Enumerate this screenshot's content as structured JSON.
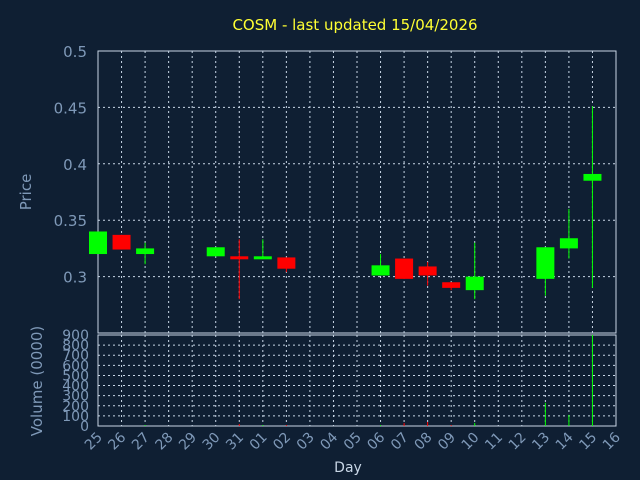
{
  "chart_data": {
    "type": "candlestick",
    "title": "COSM - last updated 15/04/2026",
    "xlabel": "Day",
    "price_ylabel": "Price",
    "volume_ylabel": "Volume (0000)",
    "price_ylim": [
      0.25,
      0.5
    ],
    "price_ticks": [
      "0.5",
      "0.45",
      "0.4",
      "0.35",
      "0.3"
    ],
    "price_tick_values": [
      0.5,
      0.45,
      0.4,
      0.35,
      0.3
    ],
    "volume_ylim": [
      0,
      900
    ],
    "volume_ticks": [
      "900",
      "800",
      "700",
      "600",
      "500",
      "400",
      "300",
      "200",
      "100",
      "0"
    ],
    "volume_tick_values": [
      900,
      800,
      700,
      600,
      500,
      400,
      300,
      200,
      100,
      0
    ],
    "x_tick_labels": [
      "25",
      "26",
      "27",
      "28",
      "29",
      "30",
      "31",
      "01",
      "02",
      "03",
      "04",
      "05",
      "06",
      "07",
      "08",
      "09",
      "10",
      "11",
      "12",
      "13",
      "14",
      "15",
      "16"
    ],
    "grid": true,
    "up_color": "#00ff00",
    "down_color": "#ff0000",
    "candles": [
      {
        "day": "25",
        "open": 0.32,
        "close": 0.34,
        "high": 0.34,
        "low": 0.32,
        "volume": 0
      },
      {
        "day": "26",
        "open": 0.337,
        "close": 0.324,
        "high": 0.337,
        "low": 0.324,
        "volume": 0
      },
      {
        "day": "27",
        "open": 0.32,
        "close": 0.325,
        "high": 0.33,
        "low": 0.311,
        "volume": 10
      },
      {
        "day": "30",
        "open": 0.318,
        "close": 0.326,
        "high": 0.326,
        "low": 0.318,
        "volume": 0
      },
      {
        "day": "31",
        "open": 0.318,
        "close": 0.316,
        "high": 0.333,
        "low": 0.28,
        "volume": 20
      },
      {
        "day": "01",
        "open": 0.317,
        "close": 0.318,
        "high": 0.333,
        "low": 0.316,
        "volume": 10
      },
      {
        "day": "02",
        "open": 0.317,
        "close": 0.307,
        "high": 0.317,
        "low": 0.304,
        "volume": 10
      },
      {
        "day": "06",
        "open": 0.301,
        "close": 0.31,
        "high": 0.32,
        "low": 0.301,
        "volume": 10
      },
      {
        "day": "07",
        "open": 0.316,
        "close": 0.298,
        "high": 0.316,
        "low": 0.298,
        "volume": 30
      },
      {
        "day": "08",
        "open": 0.309,
        "close": 0.301,
        "high": 0.313,
        "low": 0.292,
        "volume": 40
      },
      {
        "day": "09",
        "open": 0.295,
        "close": 0.29,
        "high": 0.295,
        "low": 0.288,
        "volume": 10
      },
      {
        "day": "10",
        "open": 0.288,
        "close": 0.3,
        "high": 0.33,
        "low": 0.28,
        "volume": 30
      },
      {
        "day": "13",
        "open": 0.298,
        "close": 0.326,
        "high": 0.326,
        "low": 0.283,
        "volume": 230
      },
      {
        "day": "14",
        "open": 0.325,
        "close": 0.334,
        "high": 0.36,
        "low": 0.316,
        "volume": 110
      },
      {
        "day": "15",
        "open": 0.385,
        "close": 0.391,
        "high": 0.451,
        "low": 0.29,
        "volume": 900
      }
    ]
  }
}
